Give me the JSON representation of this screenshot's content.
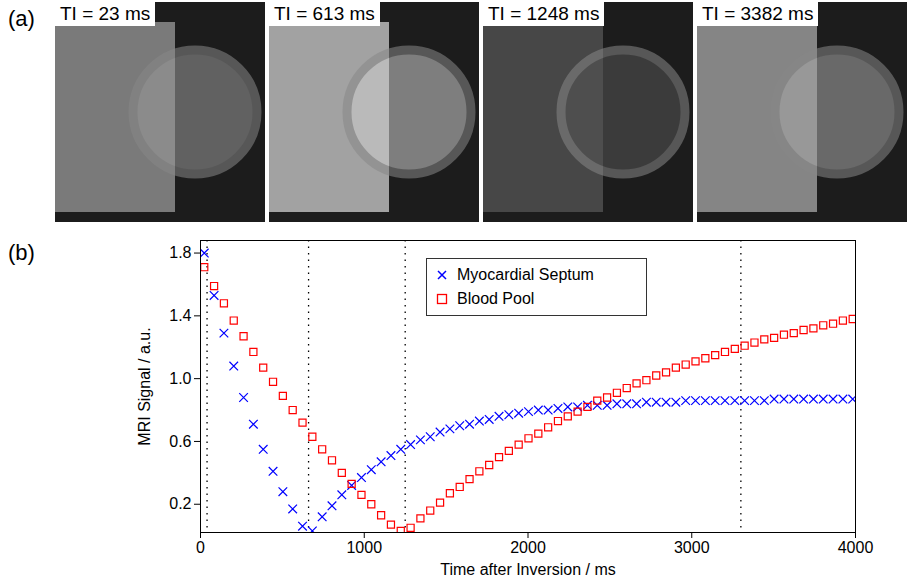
{
  "panels": {
    "a": {
      "label": "(a)",
      "images": [
        "TI = 23 ms",
        "TI = 613 ms",
        "TI = 1248 ms",
        "TI = 3382 ms"
      ]
    },
    "b": {
      "label": "(b)"
    }
  },
  "chart_data": {
    "type": "scatter",
    "x_label": "Time after Inversion / ms",
    "y_label": "MRI Signal / a.u.",
    "xlim": [
      0,
      4000
    ],
    "xticks": [
      0,
      1000,
      2000,
      3000,
      4000
    ],
    "ylim": [
      0.02,
      1.88
    ],
    "yticks": [
      0.2,
      0.6,
      {
        "value": 1,
        "label": "1.0"
      },
      1.4,
      1.8
    ],
    "legend": "top",
    "vlines": [
      40,
      660,
      1250,
      3300
    ],
    "x": [
      23,
      83,
      143,
      203,
      263,
      323,
      383,
      443,
      503,
      563,
      623,
      683,
      743,
      803,
      863,
      923,
      983,
      1043,
      1103,
      1163,
      1223,
      1283,
      1343,
      1403,
      1463,
      1523,
      1583,
      1643,
      1703,
      1763,
      1823,
      1883,
      1943,
      2003,
      2063,
      2123,
      2183,
      2243,
      2303,
      2363,
      2423,
      2483,
      2543,
      2603,
      2663,
      2723,
      2783,
      2843,
      2903,
      2963,
      3023,
      3083,
      3143,
      3203,
      3263,
      3323,
      3383,
      3443,
      3503,
      3563,
      3623,
      3683,
      3743,
      3803,
      3863,
      3923,
      3983
    ],
    "series": [
      {
        "name": "Myocardial Septum",
        "color": "#0000ff",
        "marker": "x",
        "values": [
          1.8,
          1.53,
          1.29,
          1.08,
          0.88,
          0.71,
          0.55,
          0.41,
          0.28,
          0.17,
          0.06,
          0.03,
          0.12,
          0.19,
          0.26,
          0.32,
          0.37,
          0.42,
          0.47,
          0.51,
          0.55,
          0.58,
          0.61,
          0.63,
          0.66,
          0.68,
          0.7,
          0.71,
          0.73,
          0.74,
          0.76,
          0.77,
          0.78,
          0.79,
          0.8,
          0.8,
          0.81,
          0.82,
          0.82,
          0.83,
          0.83,
          0.83,
          0.84,
          0.84,
          0.84,
          0.85,
          0.85,
          0.85,
          0.85,
          0.86,
          0.86,
          0.86,
          0.86,
          0.86,
          0.86,
          0.86,
          0.86,
          0.86,
          0.87,
          0.87,
          0.87,
          0.87,
          0.87,
          0.87,
          0.87,
          0.87,
          0.87
        ]
      },
      {
        "name": "Blood Pool",
        "color": "#ff0000",
        "marker": "square",
        "values": [
          1.71,
          1.59,
          1.48,
          1.37,
          1.27,
          1.17,
          1.07,
          0.98,
          0.89,
          0.8,
          0.72,
          0.63,
          0.55,
          0.48,
          0.4,
          0.33,
          0.26,
          0.2,
          0.13,
          0.07,
          0.03,
          0.05,
          0.11,
          0.16,
          0.21,
          0.27,
          0.31,
          0.36,
          0.41,
          0.45,
          0.5,
          0.54,
          0.58,
          0.62,
          0.65,
          0.69,
          0.73,
          0.76,
          0.79,
          0.82,
          0.86,
          0.88,
          0.91,
          0.94,
          0.97,
          0.99,
          1.02,
          1.04,
          1.07,
          1.09,
          1.11,
          1.13,
          1.15,
          1.17,
          1.19,
          1.21,
          1.23,
          1.25,
          1.26,
          1.28,
          1.29,
          1.31,
          1.32,
          1.34,
          1.35,
          1.37,
          1.38
        ]
      }
    ]
  }
}
